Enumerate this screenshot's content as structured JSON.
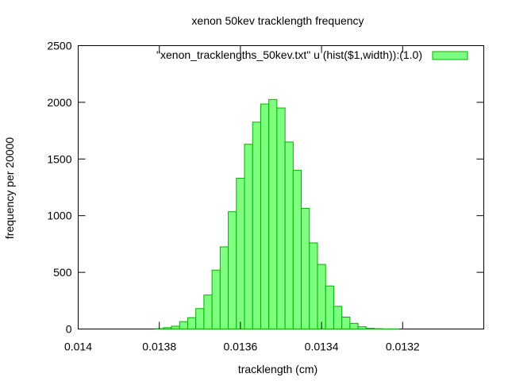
{
  "chart_data": {
    "type": "bar",
    "title": "xenon 50kev tracklength frequency",
    "xlabel": "tracklength (cm)",
    "ylabel": "frequency per 20000",
    "x_reversed": true,
    "xlim": [
      0.014,
      0.013
    ],
    "ylim": [
      0,
      2500
    ],
    "xticks": [
      {
        "value": 0.014,
        "label": "0.014"
      },
      {
        "value": 0.0138,
        "label": "0.0138"
      },
      {
        "value": 0.0136,
        "label": "0.0136"
      },
      {
        "value": 0.0134,
        "label": "0.0134"
      },
      {
        "value": 0.0132,
        "label": "0.0132"
      }
    ],
    "yticks": [
      {
        "value": 0,
        "label": "0"
      },
      {
        "value": 500,
        "label": "500"
      },
      {
        "value": 1000,
        "label": "1000"
      },
      {
        "value": 1500,
        "label": "1500"
      },
      {
        "value": 2000,
        "label": "2000"
      },
      {
        "value": 2500,
        "label": "2500"
      }
    ],
    "grid": false,
    "legend_position": "top-right",
    "series": [
      {
        "name": "\"xenon_tracklengths_50kev.txt\" u (hist($1,width)):(1.0)",
        "color": "#7fff7f",
        "edge_color": "#00b000",
        "bin_width": 2e-05,
        "x": [
          0.0138,
          0.01378,
          0.01376,
          0.01374,
          0.01372,
          0.0137,
          0.01368,
          0.01366,
          0.01364,
          0.01362,
          0.0136,
          0.01358,
          0.01356,
          0.01354,
          0.01352,
          0.0135,
          0.01348,
          0.01346,
          0.01344,
          0.01342,
          0.0134,
          0.01338,
          0.01336,
          0.01334,
          0.01332,
          0.0133,
          0.01328,
          0.01326,
          0.01324,
          0.01322,
          0.0132
        ],
        "values": [
          3,
          12,
          25,
          65,
          100,
          180,
          300,
          520,
          725,
          1035,
          1330,
          1630,
          1825,
          1985,
          2025,
          1950,
          1650,
          1400,
          1065,
          760,
          570,
          380,
          200,
          105,
          50,
          20,
          6,
          3,
          1,
          1,
          0
        ]
      }
    ]
  }
}
